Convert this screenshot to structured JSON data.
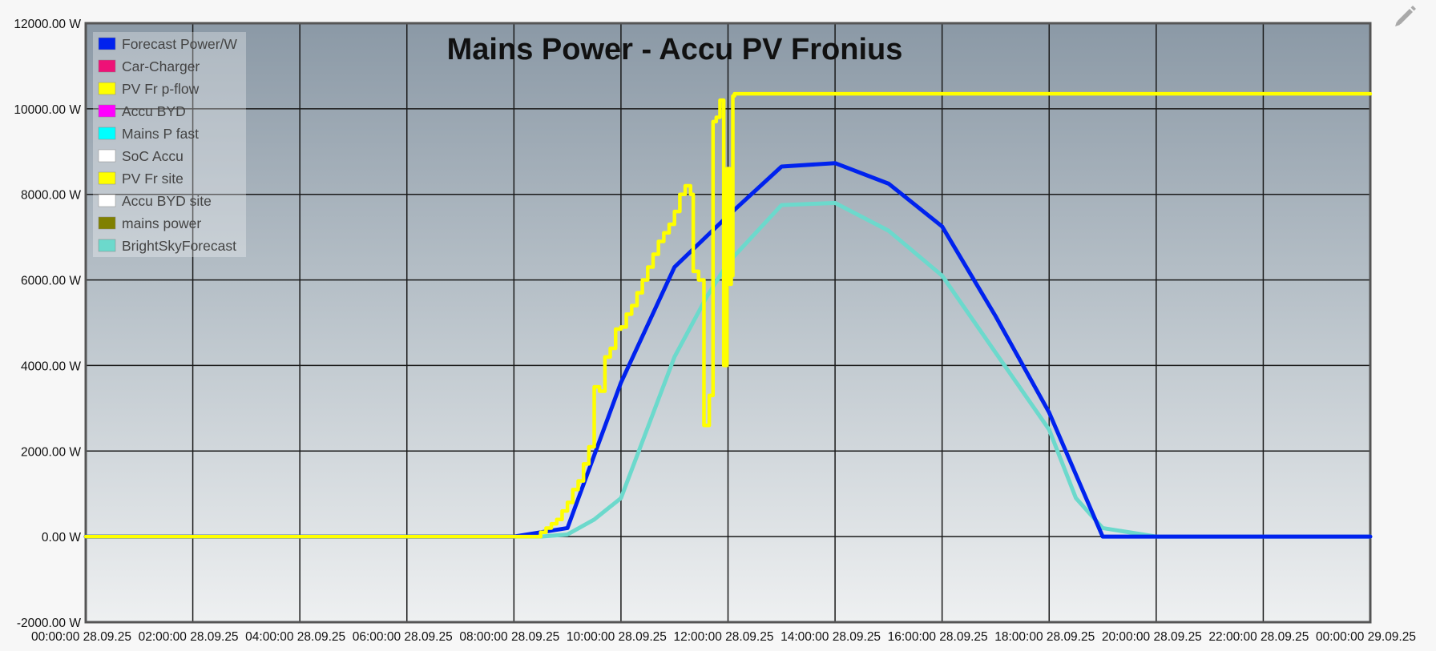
{
  "edit_icon": "pencil-icon",
  "chart_data": {
    "type": "line",
    "title": "Mains Power - Accu PV Fronius",
    "xlabel": "",
    "ylabel": "",
    "x_unit": "hours on 28.09.25",
    "xlim": [
      0,
      24
    ],
    "ylim": [
      -2000,
      12000
    ],
    "y_ticks": [
      -2000,
      0,
      2000,
      4000,
      6000,
      8000,
      10000,
      12000
    ],
    "y_tick_labels": [
      "-2000.00 W",
      "0.00 W",
      "2000.00 W",
      "4000.00 W",
      "6000.00 W",
      "8000.00 W",
      "10000.00 W",
      "12000.00 W"
    ],
    "x_ticks": [
      0,
      2,
      4,
      6,
      8,
      10,
      12,
      14,
      16,
      18,
      20,
      22,
      24
    ],
    "x_tick_labels": [
      "00:00:00 28.09.25",
      "02:00:00 28.09.25",
      "04:00:00 28.09.25",
      "06:00:00 28.09.25",
      "08:00:00 28.09.25",
      "10:00:00 28.09.25",
      "12:00:00 28.09.25",
      "14:00:00 28.09.25",
      "16:00:00 28.09.25",
      "18:00:00 28.09.25",
      "20:00:00 28.09.25",
      "22:00:00 28.09.25",
      "00:00:00 29.09.25"
    ],
    "grid": true,
    "legend_position": "top-left",
    "legend": [
      {
        "name": "Forecast Power/W",
        "color": "#0022ee"
      },
      {
        "name": "Car-Charger",
        "color": "#ee1177"
      },
      {
        "name": "PV Fr p-flow",
        "color": "#ffff00"
      },
      {
        "name": "Accu BYD",
        "color": "#ff00ff"
      },
      {
        "name": "Mains P fast",
        "color": "#00ffff"
      },
      {
        "name": "SoC Accu",
        "color": "#ffffff"
      },
      {
        "name": "PV Fr site",
        "color": "#ffff00"
      },
      {
        "name": "Accu BYD site",
        "color": "#ffffff"
      },
      {
        "name": "mains power",
        "color": "#808000"
      },
      {
        "name": "BrightSkyForecast",
        "color": "#6cd9cc"
      }
    ],
    "series": [
      {
        "name": "Forecast Power/W",
        "color": "#0022ee",
        "x": [
          0,
          6.5,
          7,
          8,
          9,
          10,
          11,
          12,
          13,
          14,
          15,
          16,
          17,
          18,
          19,
          20,
          21,
          22,
          23,
          24
        ],
        "y": [
          0,
          0,
          0,
          0,
          200,
          3600,
          6300,
          7500,
          8650,
          8730,
          8250,
          7250,
          5150,
          2900,
          0,
          0,
          0,
          0,
          0,
          0
        ]
      },
      {
        "name": "BrightSkyForecast",
        "color": "#6cd9cc",
        "x": [
          0,
          6.5,
          7,
          8,
          8.5,
          9,
          9.5,
          10,
          11,
          11.6,
          12,
          13,
          14,
          15,
          16,
          17,
          18,
          18.5,
          19,
          20,
          21,
          22,
          23,
          24
        ],
        "y": [
          0,
          0,
          0,
          0,
          0,
          50,
          400,
          900,
          4200,
          5600,
          6400,
          7750,
          7800,
          7150,
          6100,
          4300,
          2500,
          900,
          200,
          0,
          0,
          0,
          0,
          0
        ]
      },
      {
        "name": "PV Fr p-flow",
        "color": "#ffff00",
        "x": [
          0,
          4.5,
          6.5,
          7,
          8,
          8.5,
          8.6,
          8.7,
          8.8,
          8.9,
          9.0,
          9.1,
          9.2,
          9.3,
          9.4,
          9.5,
          9.6,
          9.7,
          9.8,
          9.9,
          10.0,
          10.1,
          10.2,
          10.3,
          10.4,
          10.5,
          10.6,
          10.7,
          10.8,
          10.9,
          11.0,
          11.1,
          11.2,
          11.3,
          11.35,
          11.45,
          11.55,
          11.65,
          11.72,
          11.78,
          11.85,
          11.92,
          11.98,
          12.03,
          12.06,
          12.09,
          12.12,
          12.15,
          12.18,
          24
        ],
        "y": [
          0,
          0,
          0,
          0,
          0,
          100,
          200,
          300,
          400,
          600,
          800,
          1100,
          1300,
          1700,
          2100,
          3500,
          3400,
          4200,
          4400,
          4850,
          4900,
          5200,
          5400,
          5700,
          6000,
          6300,
          6600,
          6900,
          7100,
          7300,
          7600,
          8000,
          8200,
          8000,
          6200,
          6000,
          2600,
          3300,
          9700,
          9800,
          10200,
          4000,
          8600,
          5900,
          6100,
          10300,
          10350,
          10350,
          10350,
          10350
        ]
      }
    ]
  }
}
